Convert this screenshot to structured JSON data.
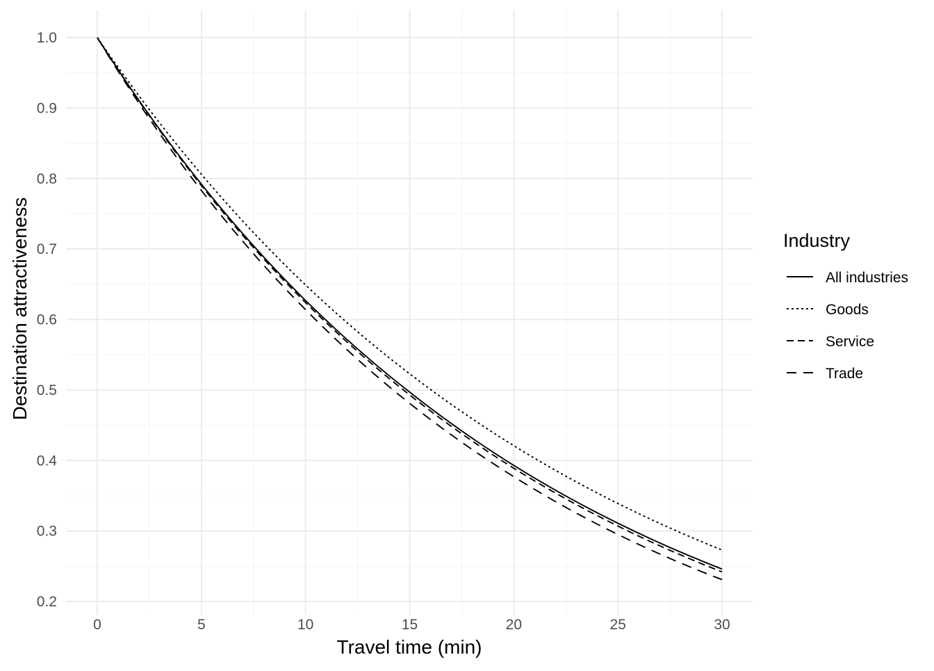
{
  "chart_data": {
    "type": "line",
    "title": "",
    "xlabel": "Travel time (min)",
    "ylabel": "Destination attractiveness",
    "xlim": [
      -1.5,
      31.5
    ],
    "ylim": [
      0.2,
      1.0
    ],
    "x_ticks": [
      0,
      5,
      10,
      15,
      20,
      25,
      30
    ],
    "x_tick_labels": [
      "0",
      "5",
      "10",
      "15",
      "20",
      "25",
      "30"
    ],
    "y_ticks": [
      0.2,
      0.3,
      0.4,
      0.5,
      0.6,
      0.7,
      0.8,
      0.9,
      1.0
    ],
    "y_tick_labels": [
      "0.2",
      "0.3",
      "0.4",
      "0.5",
      "0.6",
      "0.7",
      "0.8",
      "0.9",
      "1.0"
    ],
    "grid": true,
    "legend": {
      "title": "Industry",
      "position": "right"
    },
    "x": [
      0,
      5,
      10,
      15,
      20,
      25,
      30
    ],
    "series": [
      {
        "name": "All industries",
        "line_style": "solid",
        "values": [
          1.0,
          0.792,
          0.627,
          0.497,
          0.393,
          0.311,
          0.246
        ]
      },
      {
        "name": "Goods",
        "line_style": "dotted",
        "values": [
          1.0,
          0.806,
          0.649,
          0.523,
          0.421,
          0.339,
          0.273
        ]
      },
      {
        "name": "Service",
        "line_style": "dashed",
        "values": [
          1.0,
          0.79,
          0.624,
          0.493,
          0.389,
          0.307,
          0.242
        ]
      },
      {
        "name": "Trade",
        "line_style": "longdash",
        "values": [
          1.0,
          0.783,
          0.614,
          0.481,
          0.377,
          0.295,
          0.231
        ]
      }
    ]
  },
  "colors": {
    "line": "#000000",
    "grid_major": "#ebebeb",
    "grid_minor": "#f5f5f5",
    "tick_text": "#4d4d4d",
    "axis_title": "#000000"
  }
}
